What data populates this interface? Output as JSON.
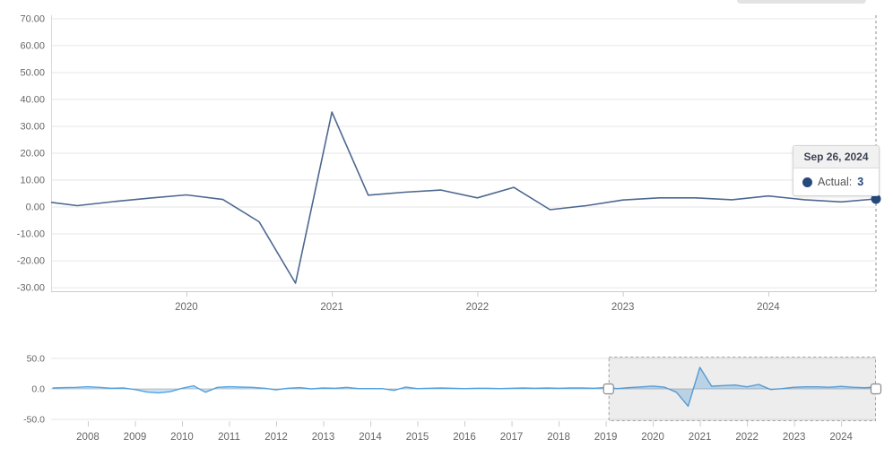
{
  "tooltip": {
    "date": "Sep 26, 2024",
    "label": "Actual:",
    "value": "3"
  },
  "colors": {
    "main_line": "#4d6890",
    "marker": "#26497c",
    "nav_line": "#52a2e2",
    "nav_fill": "rgba(82,162,226,0.32)",
    "grid": "#e6e6e6",
    "axis_line": "#cccccc",
    "left_axis_line": "#d9d9d9",
    "tick_label": "#666666",
    "selection_fill": "rgba(110,110,110,0.12)",
    "selection_border": "#a3a3a3",
    "handle_fill": "#ffffff",
    "handle_border": "#8a8a8a",
    "crosshair": "#8c8c8c",
    "nav_zero_line": "#c4c4c4"
  },
  "chart_data": [
    {
      "name": "main-chart",
      "type": "line",
      "title": "",
      "xlabel": "",
      "ylabel": "",
      "grid": true,
      "legend": "none",
      "xlim": [
        2019.07,
        2024.74
      ],
      "ylim": [
        -31.3,
        71.3
      ],
      "x_tick_values": [
        2020,
        2021,
        2022,
        2023,
        2024
      ],
      "x_tick_labels": [
        "2020",
        "2021",
        "2022",
        "2023",
        "2024"
      ],
      "y_tick_values": [
        70,
        60,
        50,
        40,
        30,
        20,
        10,
        0,
        -10,
        -20,
        -30
      ],
      "y_tick_labels": [
        "70.00",
        "60.00",
        "50.00",
        "40.00",
        "30.00",
        "20.00",
        "10.00",
        "0.00",
        "-10.00",
        "-20.00",
        "-30.00"
      ],
      "series": [
        {
          "name": "Actual",
          "x": [
            2019.0,
            2019.25,
            2019.5,
            2019.75,
            2020.0,
            2020.25,
            2020.5,
            2020.75,
            2021.0,
            2021.25,
            2021.5,
            2021.75,
            2022.0,
            2022.25,
            2022.5,
            2022.75,
            2023.0,
            2023.25,
            2023.5,
            2023.75,
            2024.0,
            2024.25,
            2024.5,
            2024.74
          ],
          "values": [
            2.2,
            0.5,
            2.0,
            3.3,
            4.5,
            2.8,
            -5.5,
            -28.3,
            35.3,
            4.4,
            5.5,
            6.3,
            3.4,
            7.3,
            -1.0,
            0.5,
            2.6,
            3.4,
            3.4,
            2.7,
            4.1,
            2.7,
            1.9,
            3.0
          ]
        }
      ],
      "last_point_marker": {
        "x": 2024.74,
        "value": 3,
        "date": "Sep 26, 2024"
      }
    },
    {
      "name": "navigator",
      "type": "area",
      "title": "",
      "xlabel": "",
      "ylabel": "",
      "grid": true,
      "legend": "none",
      "xlim": [
        2007.22,
        2024.74
      ],
      "ylim": [
        -52.9,
        52.9
      ],
      "x_tick_values": [
        2008,
        2009,
        2010,
        2011,
        2012,
        2013,
        2014,
        2015,
        2016,
        2017,
        2018,
        2019,
        2020,
        2021,
        2022,
        2023,
        2024
      ],
      "x_tick_labels": [
        "2008",
        "2009",
        "2010",
        "2011",
        "2012",
        "2013",
        "2014",
        "2015",
        "2016",
        "2017",
        "2018",
        "2019",
        "2020",
        "2021",
        "2022",
        "2023",
        "2024"
      ],
      "y_tick_values": [
        50,
        0,
        -50
      ],
      "y_tick_labels": [
        "50.0",
        "0.0",
        "-50.0"
      ],
      "selection": {
        "from": 2019.06,
        "to": 2024.74
      },
      "series": [
        {
          "name": "Actual",
          "x": [
            2007.25,
            2007.5,
            2007.75,
            2008.0,
            2008.25,
            2008.5,
            2008.75,
            2009.0,
            2009.25,
            2009.5,
            2009.75,
            2010.0,
            2010.25,
            2010.5,
            2010.75,
            2011.0,
            2011.25,
            2011.5,
            2011.75,
            2012.0,
            2012.25,
            2012.5,
            2012.75,
            2013.0,
            2013.25,
            2013.5,
            2013.75,
            2014.0,
            2014.25,
            2014.5,
            2014.75,
            2015.0,
            2015.25,
            2015.5,
            2015.75,
            2016.0,
            2016.25,
            2016.5,
            2016.75,
            2017.0,
            2017.25,
            2017.5,
            2017.75,
            2018.0,
            2018.25,
            2018.5,
            2018.75,
            2019.0,
            2019.25,
            2019.5,
            2019.75,
            2020.0,
            2020.25,
            2020.5,
            2020.75,
            2021.0,
            2021.25,
            2021.5,
            2021.75,
            2022.0,
            2022.25,
            2022.5,
            2022.75,
            2023.0,
            2023.25,
            2023.5,
            2023.75,
            2024.0,
            2024.25,
            2024.5,
            2024.74
          ],
          "values": [
            1.5,
            2.0,
            2.5,
            3.5,
            2.5,
            1.0,
            1.5,
            -1.0,
            -5.0,
            -6.5,
            -4.5,
            1.0,
            5.0,
            -5.5,
            2.5,
            3.5,
            3.0,
            2.5,
            1.0,
            -1.5,
            1.0,
            2.0,
            0.0,
            1.5,
            1.0,
            2.5,
            0.5,
            0.5,
            0.5,
            -2.5,
            3.0,
            0.5,
            1.0,
            1.5,
            1.0,
            0.5,
            1.0,
            1.0,
            0.5,
            1.0,
            1.5,
            1.0,
            1.5,
            1.0,
            1.5,
            1.5,
            1.0,
            2.2,
            0.5,
            2.0,
            3.3,
            4.5,
            2.8,
            -5.5,
            -28.3,
            35.3,
            4.4,
            5.5,
            6.3,
            3.4,
            7.3,
            -1.0,
            0.5,
            2.6,
            3.4,
            3.4,
            2.7,
            4.1,
            2.7,
            1.9,
            3.0
          ]
        }
      ]
    }
  ]
}
